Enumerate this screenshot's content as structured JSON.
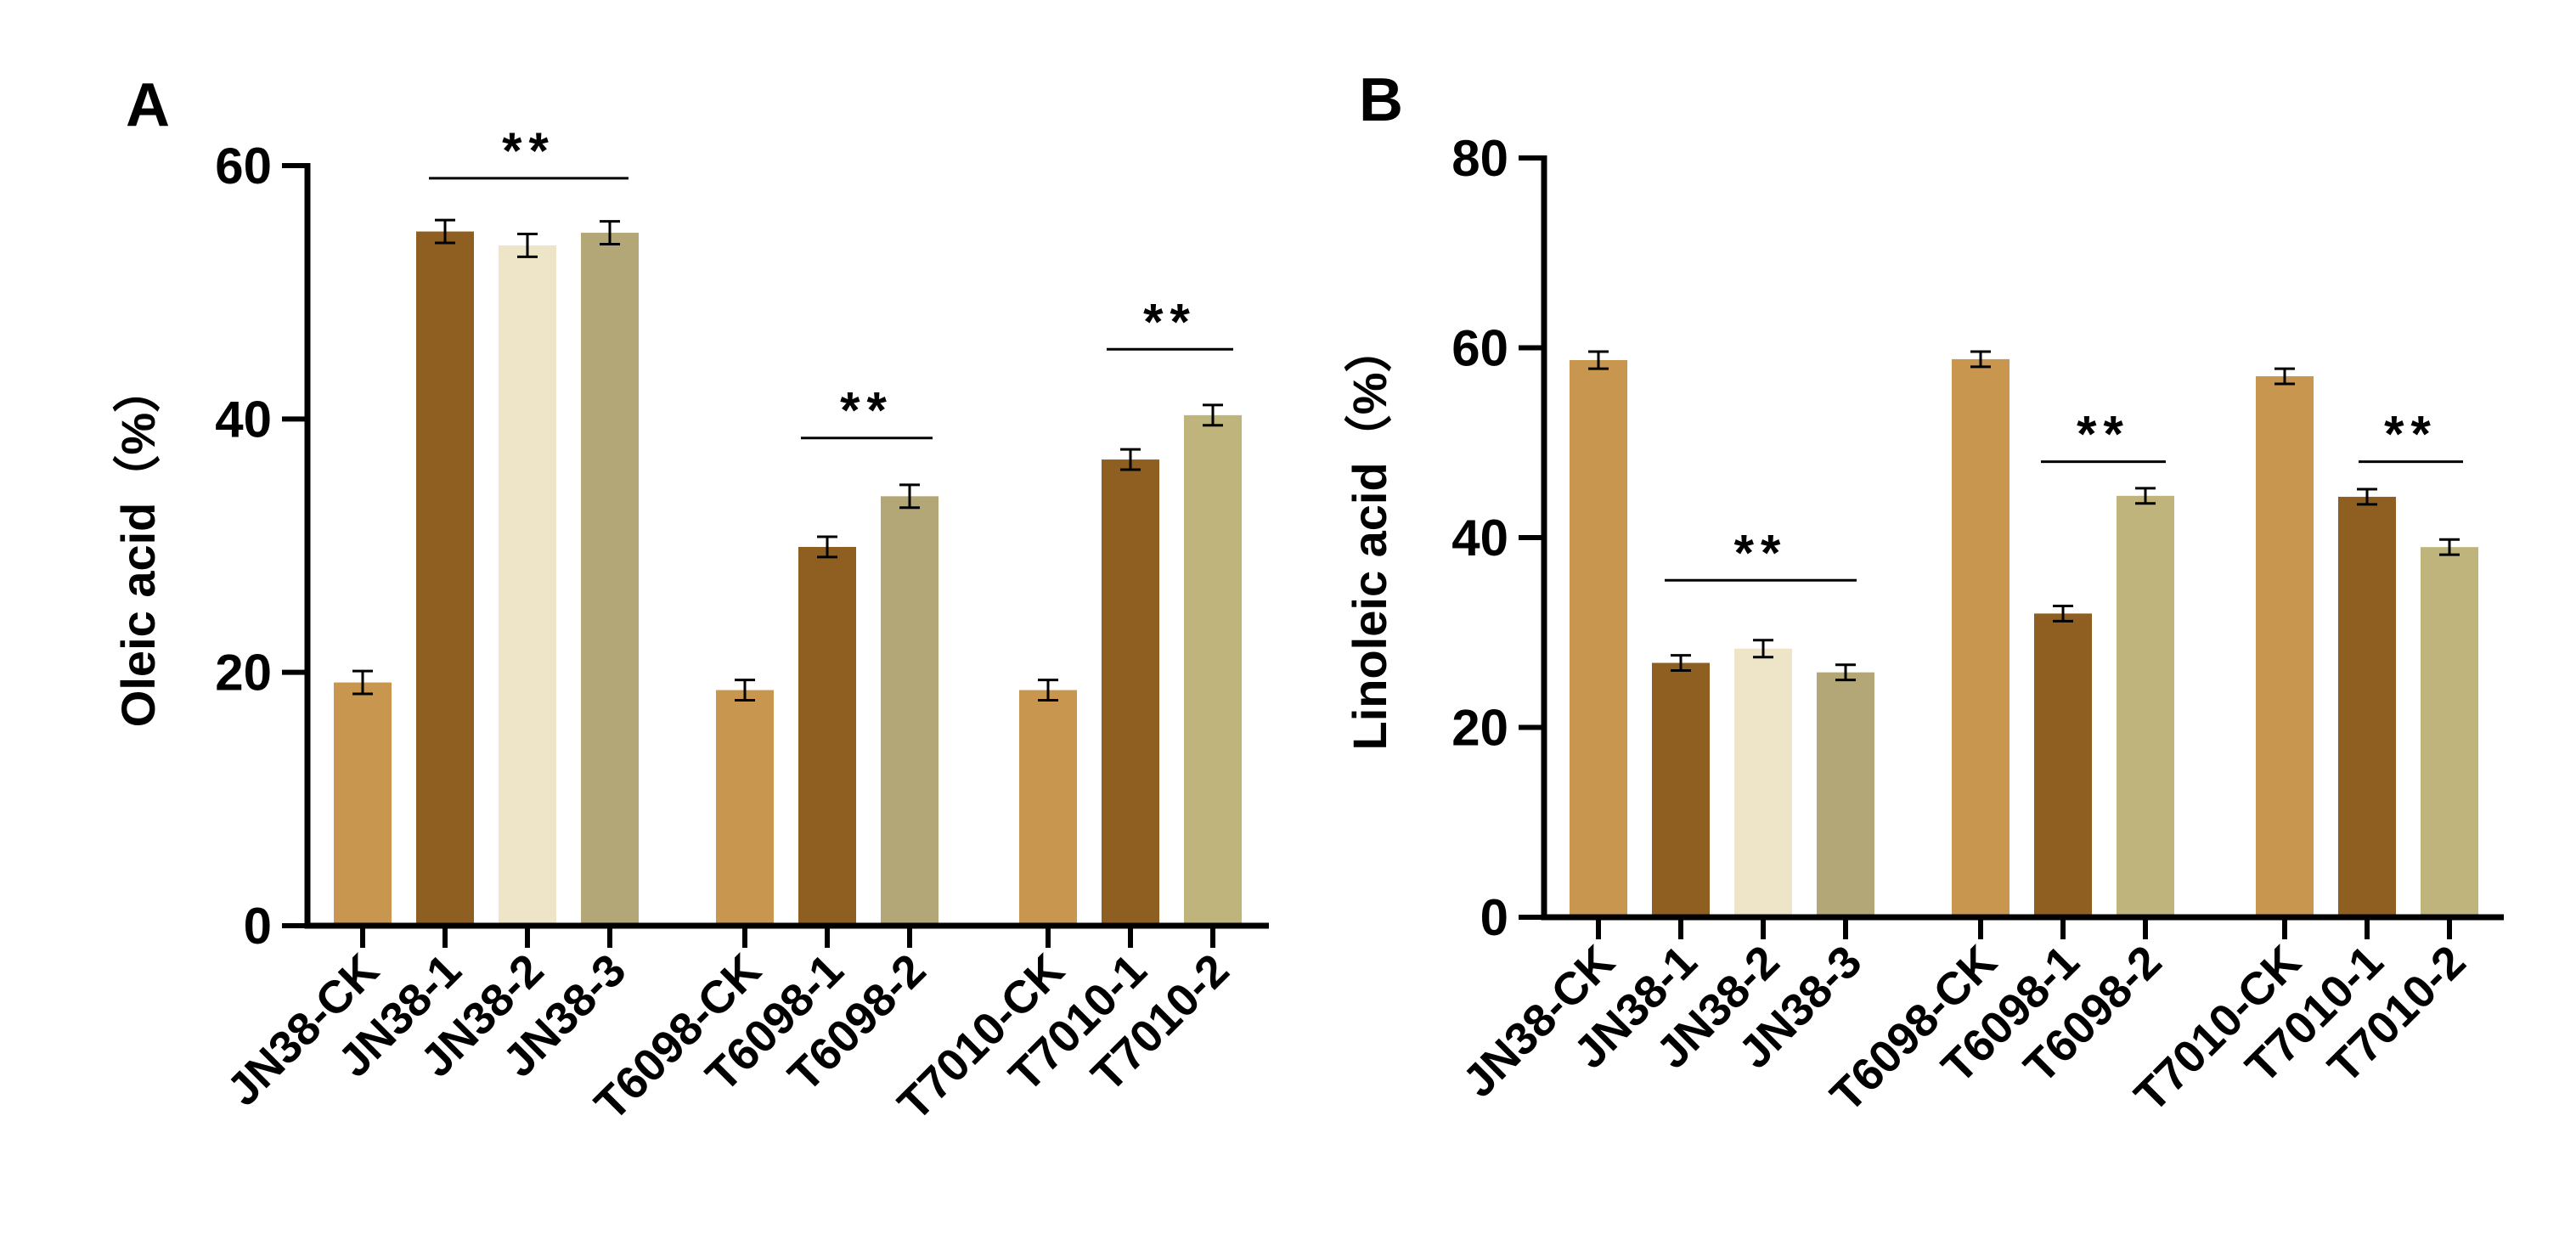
{
  "chart_data": [
    {
      "type": "bar",
      "panel": "A",
      "ylabel": "Oleic acid（%）",
      "ylim": [
        0,
        60
      ],
      "yticks": [
        0,
        20,
        40,
        60
      ],
      "groups": [
        {
          "categories": [
            "JN38-CK",
            "JN38-1",
            "JN38-2",
            "JN38-3"
          ],
          "values": [
            19.2,
            54.8,
            53.7,
            54.7
          ],
          "errors": [
            0.9,
            0.9,
            0.9,
            0.9
          ]
        },
        {
          "categories": [
            "T6098-CK",
            "T6098-1",
            "T6098-2"
          ],
          "values": [
            18.6,
            29.9,
            33.9
          ],
          "errors": [
            0.8,
            0.8,
            0.9
          ]
        },
        {
          "categories": [
            "T7010-CK",
            "T7010-1",
            "T7010-2"
          ],
          "values": [
            18.6,
            36.8,
            40.3
          ],
          "errors": [
            0.8,
            0.8,
            0.8
          ]
        }
      ],
      "significance": [
        {
          "label": "**",
          "level": 59.0
        },
        {
          "label": "**",
          "level": 38.5
        },
        {
          "label": "**",
          "level": 45.5
        }
      ]
    },
    {
      "type": "bar",
      "panel": "B",
      "ylabel": "Linoleic acid（%）",
      "ylim": [
        0,
        80
      ],
      "yticks": [
        0,
        20,
        40,
        60,
        80
      ],
      "groups": [
        {
          "categories": [
            "JN38-CK",
            "JN38-1",
            "JN38-2",
            "JN38-3"
          ],
          "values": [
            58.7,
            26.8,
            28.3,
            25.8
          ],
          "errors": [
            0.9,
            0.8,
            0.9,
            0.8
          ]
        },
        {
          "categories": [
            "T6098-CK",
            "T6098-1",
            "T6098-2"
          ],
          "values": [
            58.8,
            32.0,
            44.4
          ],
          "errors": [
            0.8,
            0.8,
            0.8
          ]
        },
        {
          "categories": [
            "T7010-CK",
            "T7010-1",
            "T7010-2"
          ],
          "values": [
            57.0,
            44.3,
            39.0
          ],
          "errors": [
            0.8,
            0.8,
            0.8
          ]
        }
      ],
      "significance": [
        {
          "label": "**",
          "level": 35.5
        },
        {
          "label": "**",
          "level": 48.0
        },
        {
          "label": "**",
          "level": 48.0
        }
      ]
    }
  ],
  "colors": {
    "ck": "#C8964F",
    "line1": "#8F5F22",
    "line2": "#EEE5C8",
    "line3_jn": "#B3A677",
    "line3_t": "#C0B47D",
    "axis": "#000000"
  }
}
